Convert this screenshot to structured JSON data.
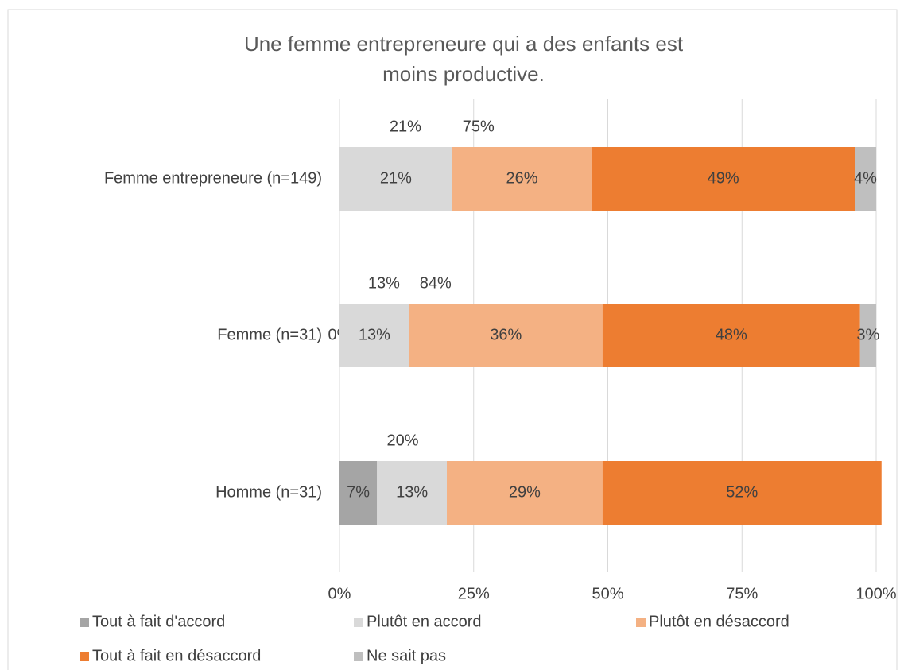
{
  "chart_data": {
    "type": "stacked-barh",
    "title": "Une femme entrepreneure qui a des enfants est moins productive.",
    "categories": [
      "Femme entrepreneure (n=149)",
      "Femme (n=31)",
      "Homme (n=31)"
    ],
    "series": [
      {
        "name": "Tout à fait d'accord",
        "color": "#a5a5a5",
        "values": [
          null,
          0,
          7
        ],
        "value_labels": [
          null,
          "0%",
          "7%"
        ]
      },
      {
        "name": "Plutôt en accord",
        "color": "#d9d9d9",
        "values": [
          21,
          13,
          13
        ],
        "value_labels": [
          "21%",
          "13%",
          "13%"
        ]
      },
      {
        "name": "Plutôt en désaccord",
        "color": "#f4b183",
        "values": [
          26,
          36,
          29
        ],
        "value_labels": [
          "26%",
          "36%",
          "29%"
        ]
      },
      {
        "name": "Tout à fait en désaccord",
        "color": "#ed7d31",
        "values": [
          49,
          48,
          52
        ],
        "value_labels": [
          "49%",
          "48%",
          "52%"
        ]
      },
      {
        "name": "Ne sait pas",
        "color": "#bfbfbf",
        "values": [
          4,
          3,
          null
        ],
        "value_labels": [
          "4%",
          "3%",
          null
        ]
      }
    ],
    "totals": {
      "agree": {
        "color": "#a6a6a6",
        "labels": [
          "21%",
          "13%",
          "20%"
        ]
      },
      "disagree": {
        "color": "#f4b183",
        "labels": [
          "75%",
          "84%",
          null
        ]
      }
    },
    "xlim": [
      0,
      100
    ],
    "xticks": [
      {
        "value": 0,
        "label": "0%"
      },
      {
        "value": 25,
        "label": "25%"
      },
      {
        "value": 50,
        "label": "50%"
      },
      {
        "value": 75,
        "label": "75%"
      },
      {
        "value": 100,
        "label": "100%"
      }
    ],
    "grid": true
  }
}
